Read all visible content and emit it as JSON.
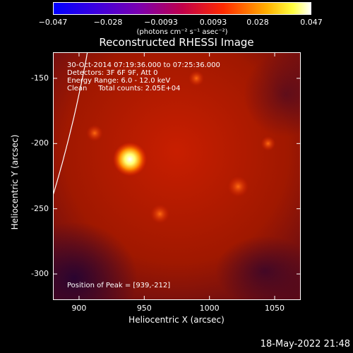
{
  "chart_data": {
    "type": "heatmap",
    "title": "Reconstructed RHESSI Image",
    "xlabel": "Heliocentric X (arcsec)",
    "ylabel": "Heliocentric Y (arcsec)",
    "xlim": [
      880,
      1070
    ],
    "ylim": [
      -320,
      -130
    ],
    "x_ticks": [
      "900",
      "950",
      "1000",
      "1050"
    ],
    "y_ticks": [
      "-150",
      "-200",
      "-250",
      "-300"
    ],
    "colorbar": {
      "colormap": "rainbow+white (blue-purple-red-orange-yellow-white)",
      "range": [
        -0.047,
        0.047
      ],
      "tick_labels": [
        "−0.047",
        "−0.028",
        "−0.0093",
        "0.0093",
        "0.028",
        "0.047"
      ],
      "unit_label": "(photons cm⁻² s⁻¹ asec⁻²)"
    },
    "sources": [
      {
        "x": 939,
        "y": -212,
        "intensity": 1.0
      },
      {
        "x": 1022,
        "y": -233,
        "intensity": 0.55
      },
      {
        "x": 962,
        "y": -254,
        "intensity": 0.45
      },
      {
        "x": 912,
        "y": -192,
        "intensity": 0.3
      },
      {
        "x": 990,
        "y": -150,
        "intensity": 0.25
      },
      {
        "x": 1045,
        "y": -200,
        "intensity": 0.2
      }
    ],
    "annotations": [
      "30-Oct-2014 07:19:36.000 to 07:25:36.000",
      "Detectors: 3F 6F 9F, Att 0",
      "Energy Range: 6.0 - 12.0 keV",
      "Clean     Total counts: 2.05E+04",
      "Position of Peak = [939,-212]"
    ],
    "limb": "solar limb arc drawn as a white line"
  },
  "footer": {
    "timestamp": "18-May-2022 21:48"
  }
}
